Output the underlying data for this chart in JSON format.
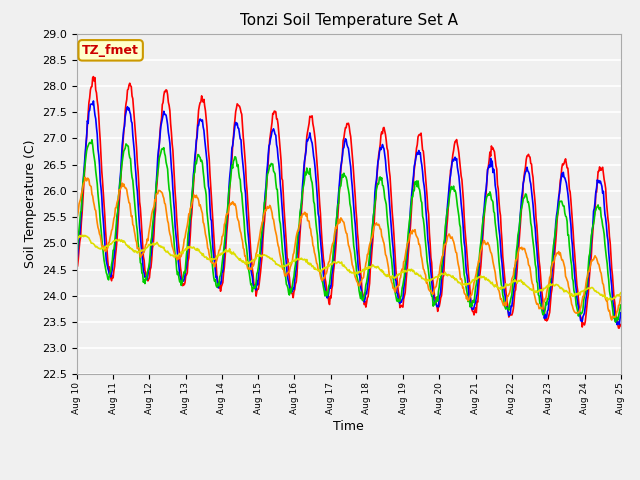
{
  "title": "Tonzi Soil Temperature Set A",
  "xlabel": "Time",
  "ylabel": "Soil Temperature (C)",
  "annotation_text": "TZ_fmet",
  "annotation_bg": "#ffffcc",
  "annotation_border": "#cc9900",
  "annotation_text_color": "#cc0000",
  "ylim": [
    22.5,
    29.0
  ],
  "yticks": [
    22.5,
    23.0,
    23.5,
    24.0,
    24.5,
    25.0,
    25.5,
    26.0,
    26.5,
    27.0,
    27.5,
    28.0,
    28.5,
    29.0
  ],
  "xtick_labels": [
    "Aug 10",
    "Aug 11",
    "Aug 12",
    "Aug 13",
    "Aug 14",
    "Aug 15",
    "Aug 16",
    "Aug 17",
    "Aug 18",
    "Aug 19",
    "Aug 20",
    "Aug 21",
    "Aug 22",
    "Aug 23",
    "Aug 24",
    "Aug 25"
  ],
  "line_colors": {
    "2cm": "#ff0000",
    "4cm": "#0000ff",
    "8cm": "#00cc00",
    "16cm": "#ff8800",
    "32cm": "#dddd00"
  },
  "line_width": 1.2,
  "background_color": "#f0f0f0",
  "plot_bg": "#f0f0f0",
  "n_points": 720,
  "n_days": 15
}
